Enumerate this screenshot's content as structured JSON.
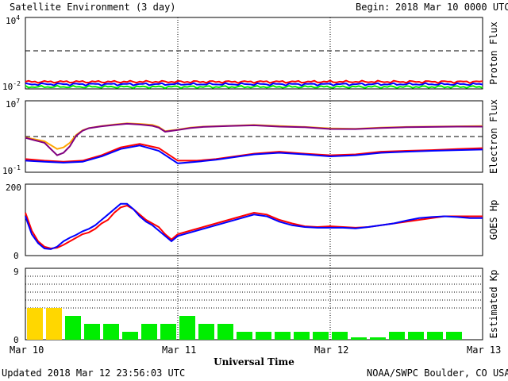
{
  "header": {
    "title": "Satellite Environment (3 day)",
    "begin_label": "Begin:",
    "begin_value": "2018 Mar 10 0000 UTC"
  },
  "footer": {
    "updated": "Updated 2018 Mar 12 23:56:03 UTC",
    "credit": "NOAA/SWPC Boulder, CO USA"
  },
  "colors": {
    "red": "#ff0000",
    "blue": "#0000ff",
    "green": "#00ee00",
    "orange": "#ffa500",
    "purple": "#800080",
    "yellow": "#ffd700",
    "bar_green": "#00ee00"
  },
  "chart_data": [
    {
      "type": "line",
      "panel": "proton",
      "ylabel": "Proton Flux",
      "yscale": "log",
      "ylim_exp": [
        -2,
        4
      ],
      "ytick_labels": {
        "top": "10",
        "top_exp": "4",
        "bottom": "10",
        "bottom_exp": "-2"
      },
      "threshold": 10,
      "series": [
        {
          "color": "red",
          "x": [
            0,
            72
          ],
          "values": [
            0.04,
            0.04
          ]
        },
        {
          "color": "blue",
          "x": [
            0,
            72
          ],
          "values": [
            0.025,
            0.025
          ]
        },
        {
          "color": "green",
          "x": [
            0,
            72
          ],
          "values": [
            0.015,
            0.015
          ]
        }
      ]
    },
    {
      "type": "line",
      "panel": "electron",
      "ylabel": "Electron Flux",
      "yscale": "log",
      "ylim_exp": [
        -1,
        7
      ],
      "ytick_labels": {
        "top": "10",
        "top_exp": "7",
        "bottom": "10",
        "bottom_exp": "-1"
      },
      "threshold": 1000,
      "series": [
        {
          "color": "orange",
          "x": [
            0,
            3,
            5,
            6,
            7,
            8,
            9,
            10,
            12,
            14,
            16,
            18,
            20,
            21,
            22,
            24,
            26,
            28,
            32,
            36,
            40,
            44,
            48,
            52,
            56,
            60,
            64,
            68,
            72
          ],
          "values": [
            800,
            300,
            40,
            60,
            200,
            1500,
            5000,
            9000,
            15000,
            22000,
            30000,
            26000,
            20000,
            12000,
            4000,
            6000,
            10000,
            13000,
            16000,
            20000,
            15000,
            12000,
            8000,
            7500,
            10000,
            12000,
            13000,
            14000,
            15000
          ]
        },
        {
          "color": "purple",
          "x": [
            0,
            3,
            5,
            6,
            7,
            8,
            9,
            10,
            12,
            14,
            16,
            18,
            20,
            21,
            22,
            24,
            26,
            28,
            32,
            36,
            40,
            44,
            48,
            52,
            56,
            60,
            64,
            68,
            72
          ],
          "values": [
            700,
            200,
            8,
            15,
            80,
            1200,
            4500,
            8500,
            14000,
            20000,
            27000,
            22000,
            16000,
            10000,
            3500,
            5500,
            9000,
            12000,
            15000,
            18000,
            13000,
            11000,
            7000,
            6800,
            9000,
            11000,
            12000,
            13000,
            13000
          ]
        },
        {
          "color": "red",
          "x": [
            0,
            3,
            6,
            9,
            12,
            15,
            18,
            21,
            24,
            27,
            30,
            33,
            36,
            40,
            44,
            48,
            52,
            56,
            60,
            64,
            68,
            72
          ],
          "values": [
            3,
            2,
            1.5,
            2,
            8,
            60,
            150,
            50,
            2,
            2,
            3,
            6,
            12,
            20,
            12,
            8,
            10,
            20,
            25,
            30,
            40,
            50
          ]
        },
        {
          "color": "blue",
          "x": [
            0,
            3,
            6,
            9,
            12,
            15,
            18,
            21,
            24,
            27,
            30,
            33,
            36,
            40,
            44,
            48,
            52,
            56,
            60,
            64,
            68,
            72
          ],
          "values": [
            2,
            1.5,
            1.2,
            1.5,
            6,
            40,
            100,
            25,
            1,
            1.5,
            2.5,
            5,
            10,
            15,
            10,
            6,
            8,
            15,
            20,
            25,
            30,
            35
          ]
        }
      ]
    },
    {
      "type": "line",
      "panel": "hp",
      "ylabel": "GOES Hp",
      "ylim": [
        0,
        200
      ],
      "ytick_labels": [
        "0",
        "200"
      ],
      "series": [
        {
          "color": "red",
          "x": [
            0,
            1,
            2,
            3,
            4,
            5,
            6,
            7,
            8,
            9,
            10,
            11,
            12,
            13,
            14,
            15,
            16,
            17,
            18,
            19,
            20,
            21,
            22,
            23,
            24,
            26,
            28,
            30,
            32,
            34,
            36,
            38,
            40,
            42,
            44,
            46,
            48,
            50,
            52,
            54,
            56,
            58,
            60,
            62,
            64,
            66,
            68,
            70,
            72
          ],
          "values": [
            120,
            70,
            40,
            25,
            20,
            22,
            30,
            40,
            50,
            60,
            65,
            75,
            90,
            100,
            120,
            135,
            140,
            130,
            115,
            100,
            90,
            80,
            60,
            45,
            60,
            70,
            80,
            90,
            100,
            110,
            120,
            115,
            100,
            90,
            82,
            80,
            82,
            80,
            78,
            80,
            85,
            90,
            95,
            100,
            105,
            110,
            110,
            110,
            110
          ]
        },
        {
          "color": "blue",
          "x": [
            0,
            1,
            2,
            3,
            4,
            5,
            6,
            7,
            8,
            9,
            10,
            11,
            12,
            13,
            14,
            15,
            16,
            17,
            18,
            19,
            20,
            21,
            22,
            23,
            24,
            26,
            28,
            30,
            32,
            34,
            36,
            38,
            40,
            42,
            44,
            46,
            48,
            50,
            52,
            54,
            56,
            58,
            60,
            62,
            64,
            66,
            68,
            70,
            72
          ],
          "values": [
            110,
            60,
            35,
            20,
            18,
            25,
            40,
            50,
            58,
            68,
            75,
            85,
            100,
            115,
            130,
            145,
            145,
            130,
            110,
            95,
            85,
            70,
            55,
            40,
            55,
            65,
            75,
            85,
            95,
            105,
            115,
            110,
            95,
            85,
            80,
            78,
            78,
            78,
            76,
            80,
            85,
            90,
            98,
            105,
            108,
            110,
            108,
            105,
            105
          ]
        }
      ]
    },
    {
      "type": "bar",
      "panel": "kp",
      "ylabel": "Estimated Kp",
      "ylim": [
        0,
        9
      ],
      "ytick_labels": [
        "0",
        "9"
      ],
      "x": [
        1.5,
        4.5,
        7.5,
        10.5,
        13.5,
        16.5,
        19.5,
        22.5,
        25.5,
        28.5,
        31.5,
        34.5,
        37.5,
        40.5,
        43.5,
        46.5,
        49.5,
        52.5,
        55.5,
        58.5,
        61.5,
        64.5,
        67.5,
        70.5
      ],
      "values": [
        4,
        4,
        3,
        2,
        2,
        1,
        2,
        2,
        3,
        2,
        2,
        1,
        1,
        1,
        1,
        1,
        1,
        0.3,
        0.3,
        1,
        1,
        1,
        1,
        0
      ],
      "bar_colors": [
        "yellow",
        "yellow",
        "bar_green",
        "bar_green",
        "bar_green",
        "bar_green",
        "bar_green",
        "bar_green",
        "bar_green",
        "bar_green",
        "bar_green",
        "bar_green",
        "bar_green",
        "bar_green",
        "bar_green",
        "bar_green",
        "bar_green",
        "bar_green",
        "bar_green",
        "bar_green",
        "bar_green",
        "bar_green",
        "bar_green",
        "bar_green"
      ]
    }
  ],
  "xaxis": {
    "xlabel": "Universal Time",
    "tick_labels": [
      "Mar 10",
      "Mar 11",
      "Mar 12",
      "Mar 13"
    ],
    "ticks_hours": [
      0,
      24,
      48,
      72
    ]
  }
}
